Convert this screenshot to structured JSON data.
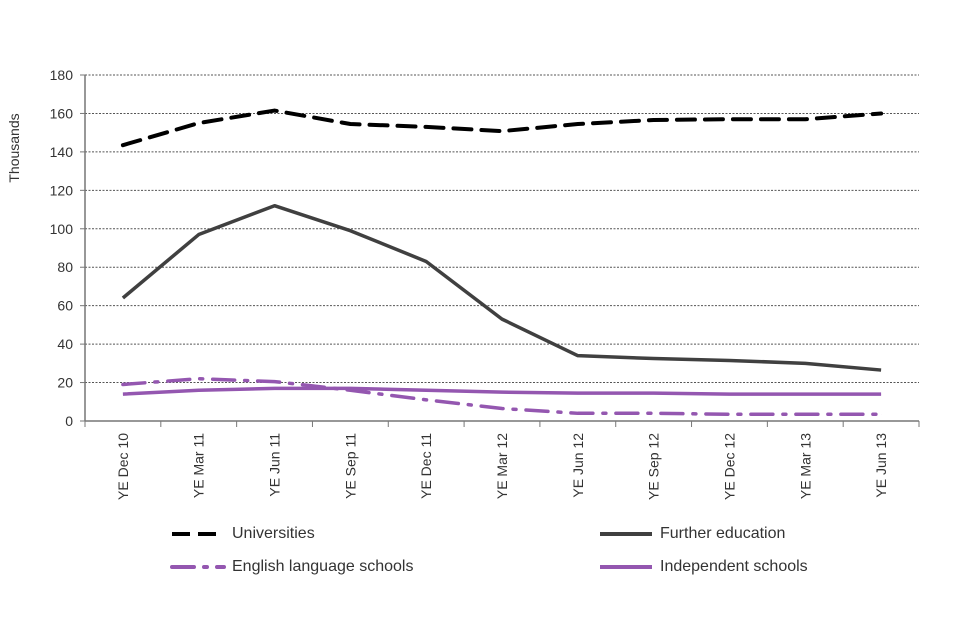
{
  "chart_data": {
    "type": "line",
    "title": "",
    "xlabel": "",
    "ylabel": "Thousands",
    "ylim": [
      0,
      180
    ],
    "yticks": [
      0,
      20,
      40,
      60,
      80,
      100,
      120,
      140,
      160,
      180
    ],
    "grid": true,
    "legend_placement": "bottom",
    "categories": [
      "YE Dec 10",
      "YE Mar 11",
      "YE Jun 11",
      "YE Sep 11",
      "YE Dec 11",
      "YE Mar 12",
      "YE Jun 12",
      "YE Sep 12",
      "YE Dec 12",
      "YE Mar 13",
      "YE Jun 13"
    ],
    "series": [
      {
        "name": "Universities",
        "color": "#000000",
        "style": "dashed",
        "values": [
          143.5,
          155,
          161.5,
          154.5,
          153,
          150.8,
          154.5,
          156.6,
          157,
          157,
          160
        ]
      },
      {
        "name": "Further education",
        "color": "#404040",
        "style": "solid",
        "values": [
          64,
          97,
          112,
          99,
          83,
          53,
          34,
          32.5,
          31.5,
          30,
          26.5
        ]
      },
      {
        "name": "English language schools",
        "color": "#9457b0",
        "style": "dash-dot",
        "values": [
          19,
          22,
          20.5,
          16,
          11,
          6.5,
          4,
          4,
          3.5,
          3.5,
          3.5
        ]
      },
      {
        "name": "Independent schools",
        "color": "#9457b0",
        "style": "solid",
        "values": [
          14,
          16,
          17,
          17,
          16,
          15,
          14.5,
          14.5,
          14,
          14,
          14
        ]
      }
    ]
  }
}
